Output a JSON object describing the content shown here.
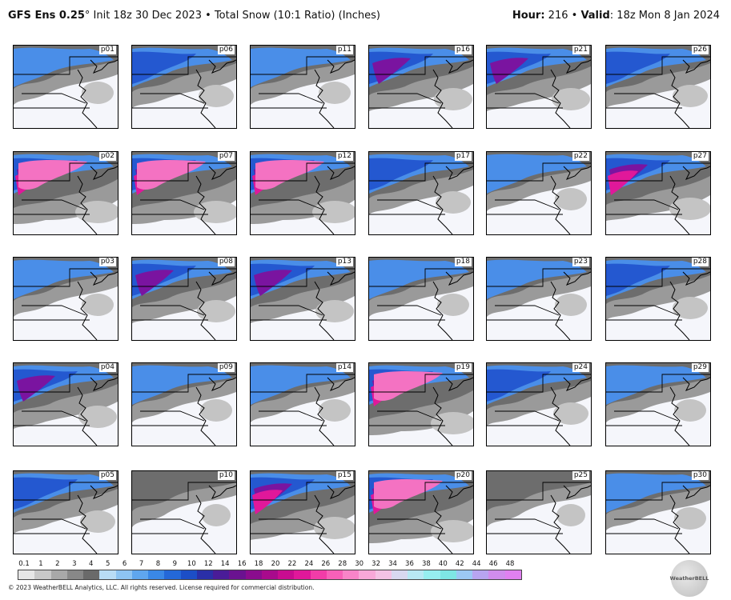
{
  "header": {
    "model": "GFS Ens 0.25",
    "degree": "°",
    "init": " Init 18z 30 Dec 2023",
    "sep": " • ",
    "product": "Total Snow (10:1 Ratio) (Inches)",
    "hour_label": "Hour:",
    "hour_value": " 216",
    "valid_label": "Valid",
    "valid_value": ": 18z Mon 8 Jan 2024"
  },
  "panels": [
    {
      "id": "p01",
      "intensity": 1
    },
    {
      "id": "p06",
      "intensity": 2
    },
    {
      "id": "p11",
      "intensity": 1
    },
    {
      "id": "p16",
      "intensity": 3
    },
    {
      "id": "p21",
      "intensity": 3
    },
    {
      "id": "p26",
      "intensity": 2
    },
    {
      "id": "p02",
      "intensity": 5
    },
    {
      "id": "p07",
      "intensity": 5
    },
    {
      "id": "p12",
      "intensity": 5
    },
    {
      "id": "p17",
      "intensity": 2
    },
    {
      "id": "p22",
      "intensity": 1
    },
    {
      "id": "p27",
      "intensity": 4
    },
    {
      "id": "p03",
      "intensity": 1
    },
    {
      "id": "p08",
      "intensity": 3
    },
    {
      "id": "p13",
      "intensity": 3
    },
    {
      "id": "p18",
      "intensity": 1
    },
    {
      "id": "p23",
      "intensity": 1
    },
    {
      "id": "p28",
      "intensity": 2
    },
    {
      "id": "p04",
      "intensity": 3
    },
    {
      "id": "p09",
      "intensity": 1
    },
    {
      "id": "p14",
      "intensity": 1
    },
    {
      "id": "p19",
      "intensity": 5
    },
    {
      "id": "p24",
      "intensity": 2
    },
    {
      "id": "p29",
      "intensity": 1
    },
    {
      "id": "p05",
      "intensity": 2
    },
    {
      "id": "p10",
      "intensity": 0
    },
    {
      "id": "p15",
      "intensity": 4
    },
    {
      "id": "p20",
      "intensity": 5
    },
    {
      "id": "p25",
      "intensity": 0
    },
    {
      "id": "p30",
      "intensity": 1
    }
  ],
  "legend": {
    "ticks": [
      "0.1",
      "1",
      "2",
      "3",
      "4",
      "5",
      "6",
      "7",
      "8",
      "9",
      "10",
      "12",
      "14",
      "16",
      "18",
      "20",
      "22",
      "24",
      "26",
      "28",
      "30",
      "32",
      "34",
      "36",
      "38",
      "40",
      "42",
      "44",
      "46",
      "48"
    ],
    "colors": [
      "#e6e6e6",
      "#c8c8c8",
      "#a8a8a8",
      "#888888",
      "#6a6a6a",
      "#b9dcf5",
      "#8ec4f2",
      "#5fa6ee",
      "#3a88e6",
      "#2468d8",
      "#1c4ec6",
      "#2a2fa8",
      "#4a1c98",
      "#6a1290",
      "#8a0c8e",
      "#a80a8c",
      "#c80c90",
      "#e0189a",
      "#f23ca8",
      "#f760b8",
      "#f884c8",
      "#f8a8d8",
      "#f4c2e4",
      "#d8d8f0",
      "#b8e8f4",
      "#96eef0",
      "#7ee6e4",
      "#9cc8f4",
      "#b8a4f0",
      "#d08cec",
      "#e080f0"
    ]
  },
  "footer": "© 2023 WeatherBELL Analytics, LLC. All rights reserved. License required for commercial distribution.",
  "logo_text": "WeatherBELL"
}
